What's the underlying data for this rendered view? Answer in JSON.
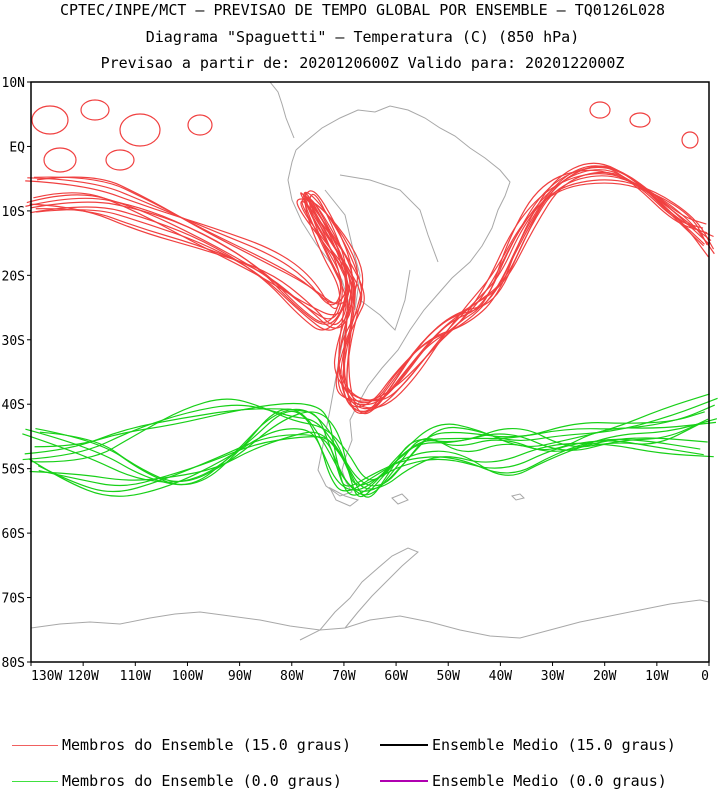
{
  "header": {
    "line1": "CPTEC/INPE/MCT — PREVISAO DE TEMPO GLOBAL POR ENSEMBLE — TQ0126L028",
    "line2": "Diagrama \"Spaguetti\" — Temperatura (C) (850 hPa)",
    "line3": "Previsao a partir de: 2020120600Z  Valido para: 2020122000Z"
  },
  "map": {
    "lat_range": [
      -80,
      10
    ],
    "lon_range": [
      -130,
      0
    ],
    "lat_ticks": [
      {
        "value": 10,
        "label": "10N"
      },
      {
        "value": 0,
        "label": "EQ"
      },
      {
        "value": -10,
        "label": "10S"
      },
      {
        "value": -20,
        "label": "20S"
      },
      {
        "value": -30,
        "label": "30S"
      },
      {
        "value": -40,
        "label": "40S"
      },
      {
        "value": -50,
        "label": "50S"
      },
      {
        "value": -60,
        "label": "60S"
      },
      {
        "value": -70,
        "label": "70S"
      },
      {
        "value": -80,
        "label": "80S"
      }
    ],
    "lon_ticks": [
      {
        "value": -130,
        "label": "130W"
      },
      {
        "value": -120,
        "label": "120W"
      },
      {
        "value": -110,
        "label": "110W"
      },
      {
        "value": -100,
        "label": "100W"
      },
      {
        "value": -90,
        "label": "90W"
      },
      {
        "value": -80,
        "label": "80W"
      },
      {
        "value": -70,
        "label": "70W"
      },
      {
        "value": -60,
        "label": "60W"
      },
      {
        "value": -50,
        "label": "50W"
      },
      {
        "value": -40,
        "label": "40W"
      },
      {
        "value": -30,
        "label": "30W"
      },
      {
        "value": -20,
        "label": "20W"
      },
      {
        "value": -10,
        "label": "10W"
      },
      {
        "value": 0,
        "label": "0"
      }
    ],
    "colors": {
      "warm": "#f04040",
      "cold": "#18d018",
      "coast": "#a8a8a8"
    }
  },
  "legend": {
    "warm_members": "Membros do Ensemble (15.0 graus)",
    "warm_mean": "Ensemble Medio (15.0 graus)",
    "cold_members": "Membros do Ensemble (0.0 graus)",
    "cold_mean": "Ensemble Medio (0.0 graus)",
    "colors": {
      "warm_members": "#f06060",
      "warm_mean": "#000000",
      "cold_members": "#40e040",
      "cold_mean": "#b000b0"
    }
  }
}
